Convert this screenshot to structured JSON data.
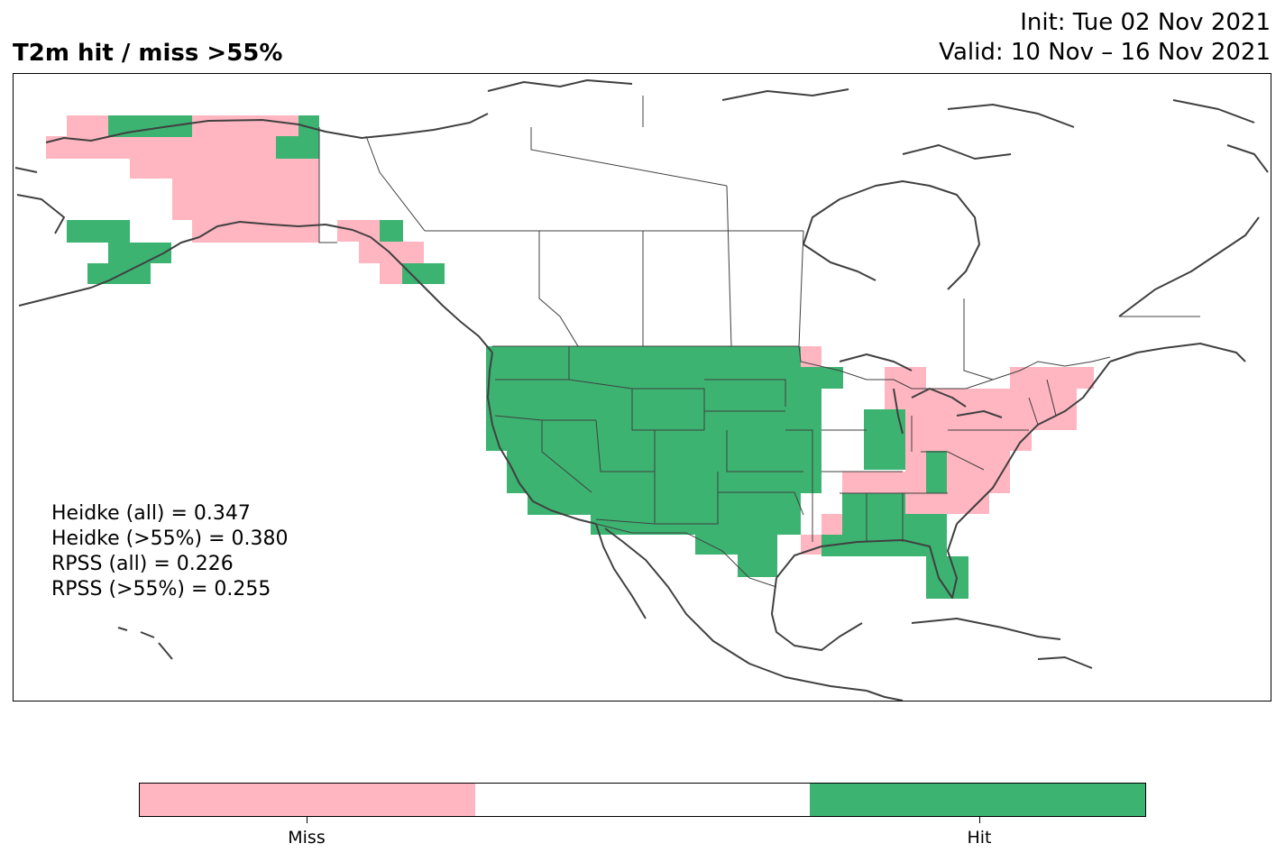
{
  "title": "T2m hit / miss  >55%",
  "init_text": "Init: Tue 02 Nov 2021",
  "valid_text": "Valid: 10 Nov – 16 Nov 2021",
  "scores": [
    "Heidke (all) = 0.347",
    "Heidke (>55%) = 0.380",
    "RPSS (all) = 0.226",
    "RPSS (>55%) = 0.255"
  ],
  "colors": {
    "miss": "#ffb6c1",
    "neutral": "#ffffff",
    "hit": "#3cb371",
    "coast": "#404040"
  },
  "colorbar": {
    "segments": [
      "miss",
      "neutral",
      "hit"
    ],
    "labels": [
      "Miss",
      "Hit"
    ]
  },
  "map": {
    "region": "North America",
    "legend_values": {
      "miss": "Miss",
      "hit": "Hit"
    },
    "hit_regions": [
      "Western & central United States",
      "Northern Alaska coast",
      "Aleutians / SW Alaska",
      "SE Alaska panhandle",
      "Indiana",
      "Florida & Gulf coast"
    ],
    "miss_regions": [
      "Interior Alaska",
      "Great Lakes",
      "Ohio Valley",
      "Northeast United States",
      "Southeast United States (Tennessee / Carolinas)"
    ]
  }
}
